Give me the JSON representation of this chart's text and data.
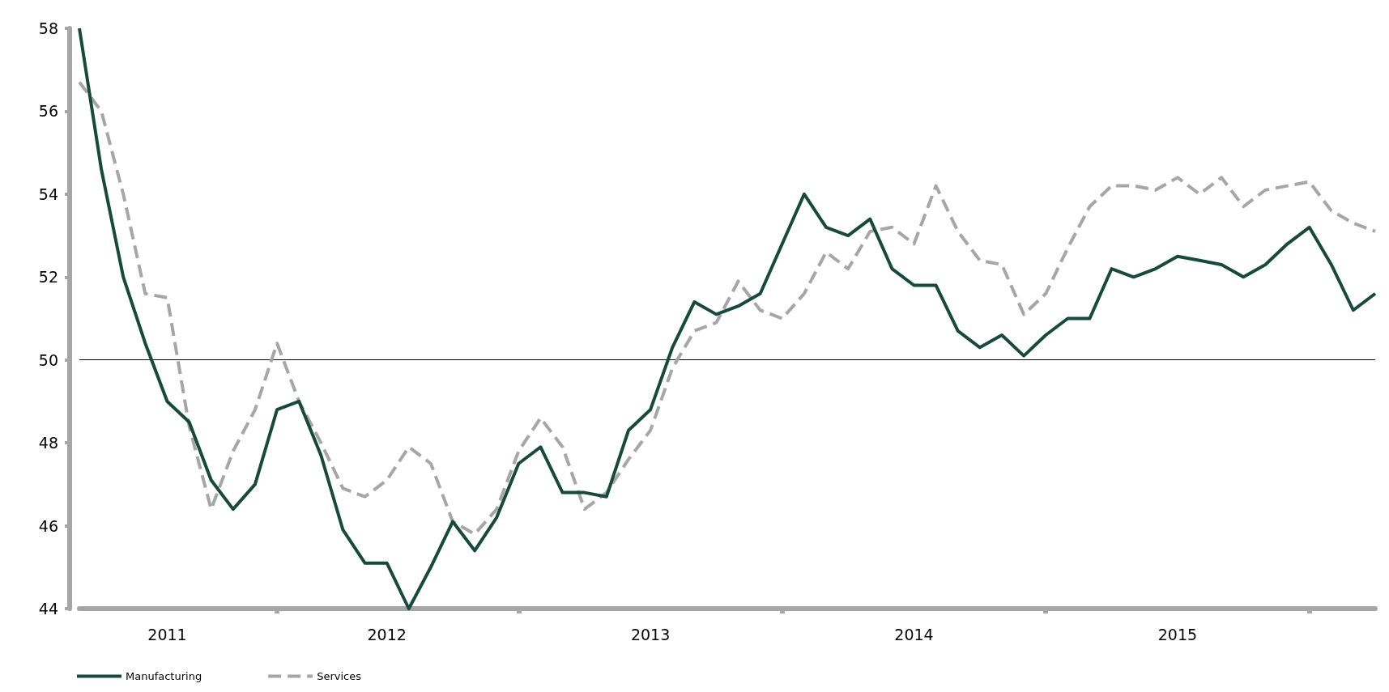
{
  "chart_data": {
    "type": "line",
    "categories": [
      null,
      null,
      null,
      null,
      "2011",
      null,
      null,
      null,
      null,
      null,
      null,
      null,
      null,
      null,
      "2012",
      null,
      null,
      null,
      null,
      null,
      null,
      null,
      null,
      null,
      null,
      null,
      "2013",
      null,
      null,
      null,
      null,
      null,
      null,
      null,
      null,
      null,
      null,
      null,
      "2014",
      null,
      null,
      null,
      null,
      null,
      null,
      null,
      null,
      null,
      null,
      null,
      "2015",
      null,
      null,
      null,
      null,
      null,
      null,
      null,
      null,
      null
    ],
    "series": [
      {
        "name": "Manufacturing",
        "color": "#174a3a",
        "line_style": "solid",
        "values": [
          58,
          54.6,
          52.0,
          50.4,
          49.0,
          48.5,
          47.1,
          46.4,
          47.0,
          48.8,
          49.0,
          47.7,
          45.9,
          45.1,
          45.1,
          44.0,
          45.0,
          46.1,
          45.4,
          46.2,
          47.5,
          47.9,
          46.8,
          46.8,
          46.7,
          48.3,
          48.8,
          50.3,
          51.4,
          51.1,
          51.3,
          51.6,
          52.8,
          54.0,
          53.2,
          53.0,
          53.4,
          52.2,
          51.8,
          51.8,
          50.7,
          50.3,
          50.6,
          50.1,
          50.6,
          51.0,
          51.0,
          52.2,
          52.0,
          52.2,
          52.5,
          52.4,
          52.3,
          52.0,
          52.3,
          52.8,
          53.2,
          52.3,
          51.2,
          51.6
        ]
      },
      {
        "name": "Services",
        "color": "#a6a6a6",
        "line_style": "dashed",
        "values": [
          56.7,
          56.0,
          54.0,
          51.6,
          51.5,
          48.4,
          46.4,
          47.8,
          48.8,
          50.4,
          49.0,
          48.0,
          46.9,
          46.7,
          47.1,
          47.9,
          47.5,
          46.1,
          45.8,
          46.4,
          47.8,
          48.6,
          47.9,
          46.4,
          46.8,
          47.6,
          48.3,
          49.8,
          50.7,
          50.9,
          51.9,
          51.2,
          51.0,
          51.6,
          52.6,
          52.2,
          53.1,
          53.2,
          52.8,
          54.2,
          53.1,
          52.4,
          52.3,
          51.1,
          51.6,
          52.7,
          53.7,
          54.2,
          54.2,
          54.1,
          54.4,
          54.0,
          54.4,
          53.7,
          54.1,
          54.2,
          54.3,
          53.6,
          53.3,
          53.1
        ]
      }
    ],
    "ylim": [
      44,
      58
    ],
    "yticks": [
      44,
      46,
      48,
      50,
      52,
      54,
      56,
      58
    ],
    "ref_lines": [
      {
        "axis": "y",
        "value": 50,
        "color": "#000000",
        "line_style": "solid"
      }
    ],
    "grid": false,
    "legend": "bottom left",
    "marker": "none"
  }
}
